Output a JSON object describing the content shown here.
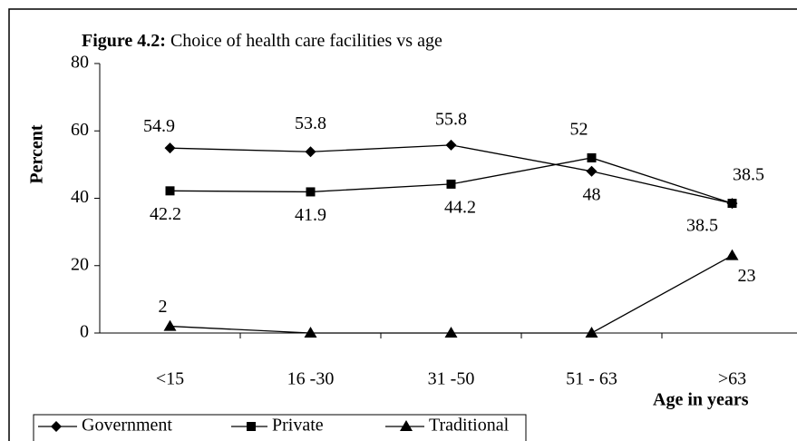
{
  "chart_data": {
    "type": "line",
    "figure_label": "Figure 4.2:",
    "title": "Choice of health care facilities vs age",
    "y_label": "Percent",
    "x_label": "Age in years",
    "categories": [
      "<15",
      "16 -30",
      "31 -50",
      "51 - 63",
      ">63"
    ],
    "series": [
      {
        "name": "Government",
        "color": "#000000",
        "marker": "diamond",
        "values": [
          54.9,
          53.8,
          55.8,
          48,
          38.5
        ]
      },
      {
        "name": "Private",
        "color": "#000000",
        "marker": "square",
        "values": [
          42.2,
          41.9,
          44.2,
          52,
          38.5
        ]
      },
      {
        "name": "Traditional",
        "color": "#000000",
        "marker": "triangle",
        "values": [
          2,
          0,
          0,
          0,
          23
        ],
        "value_labels": [
          "2",
          null,
          null,
          null,
          "23"
        ]
      }
    ],
    "ylim": [
      0,
      80
    ],
    "yticks": [
      0,
      20,
      40,
      60,
      80
    ],
    "legend": "bottom-left"
  }
}
